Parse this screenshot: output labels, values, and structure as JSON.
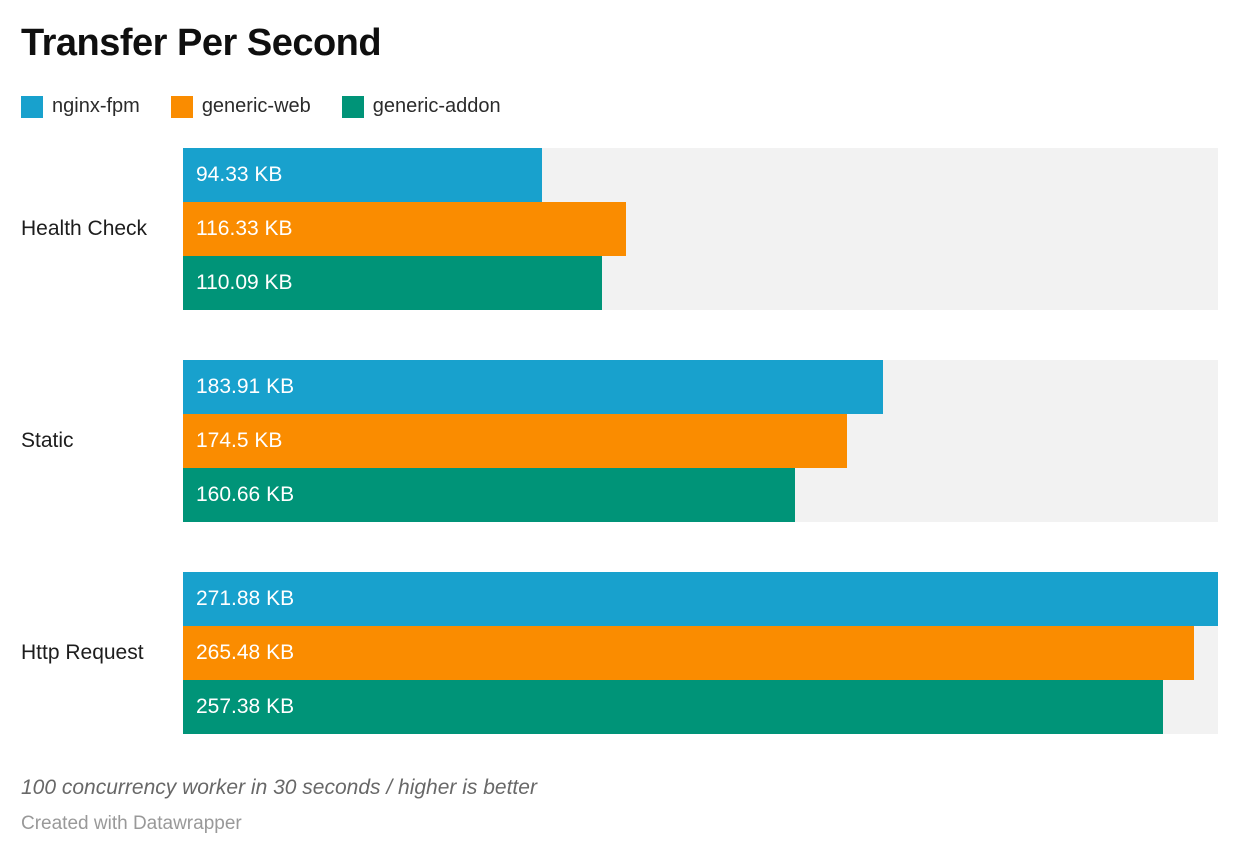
{
  "header": {
    "title": "Transfer Per Second"
  },
  "legend": {
    "items": [
      {
        "label": "nginx-fpm",
        "color": "#18a1cd"
      },
      {
        "label": "generic-web",
        "color": "#fa8c00"
      },
      {
        "label": "generic-addon",
        "color": "#009478"
      }
    ]
  },
  "chart_data": {
    "type": "bar",
    "orientation": "horizontal",
    "title": "Transfer Per Second",
    "unit": "KB",
    "xlabel": "",
    "ylabel": "",
    "xlim": [
      0,
      271.88
    ],
    "grid": false,
    "legend_position": "top",
    "track_color": "#f2f2f2",
    "categories": [
      "Health Check",
      "Static",
      "Http Request"
    ],
    "series": [
      {
        "name": "nginx-fpm",
        "color": "#18a1cd",
        "values": [
          94.33,
          183.91,
          271.88
        ],
        "labels": [
          "94.33 KB",
          "183.91 KB",
          "271.88 KB"
        ]
      },
      {
        "name": "generic-web",
        "color": "#fa8c00",
        "values": [
          116.33,
          174.5,
          265.48
        ],
        "labels": [
          "116.33 KB",
          "174.5 KB",
          "265.48 KB"
        ]
      },
      {
        "name": "generic-addon",
        "color": "#009478",
        "values": [
          110.09,
          160.66,
          257.38
        ],
        "labels": [
          "110.09 KB",
          "160.66 KB",
          "257.38 KB"
        ]
      }
    ]
  },
  "footer": {
    "note": "100 concurrency worker in 30 seconds / higher is better",
    "attribution": "Created with Datawrapper"
  }
}
